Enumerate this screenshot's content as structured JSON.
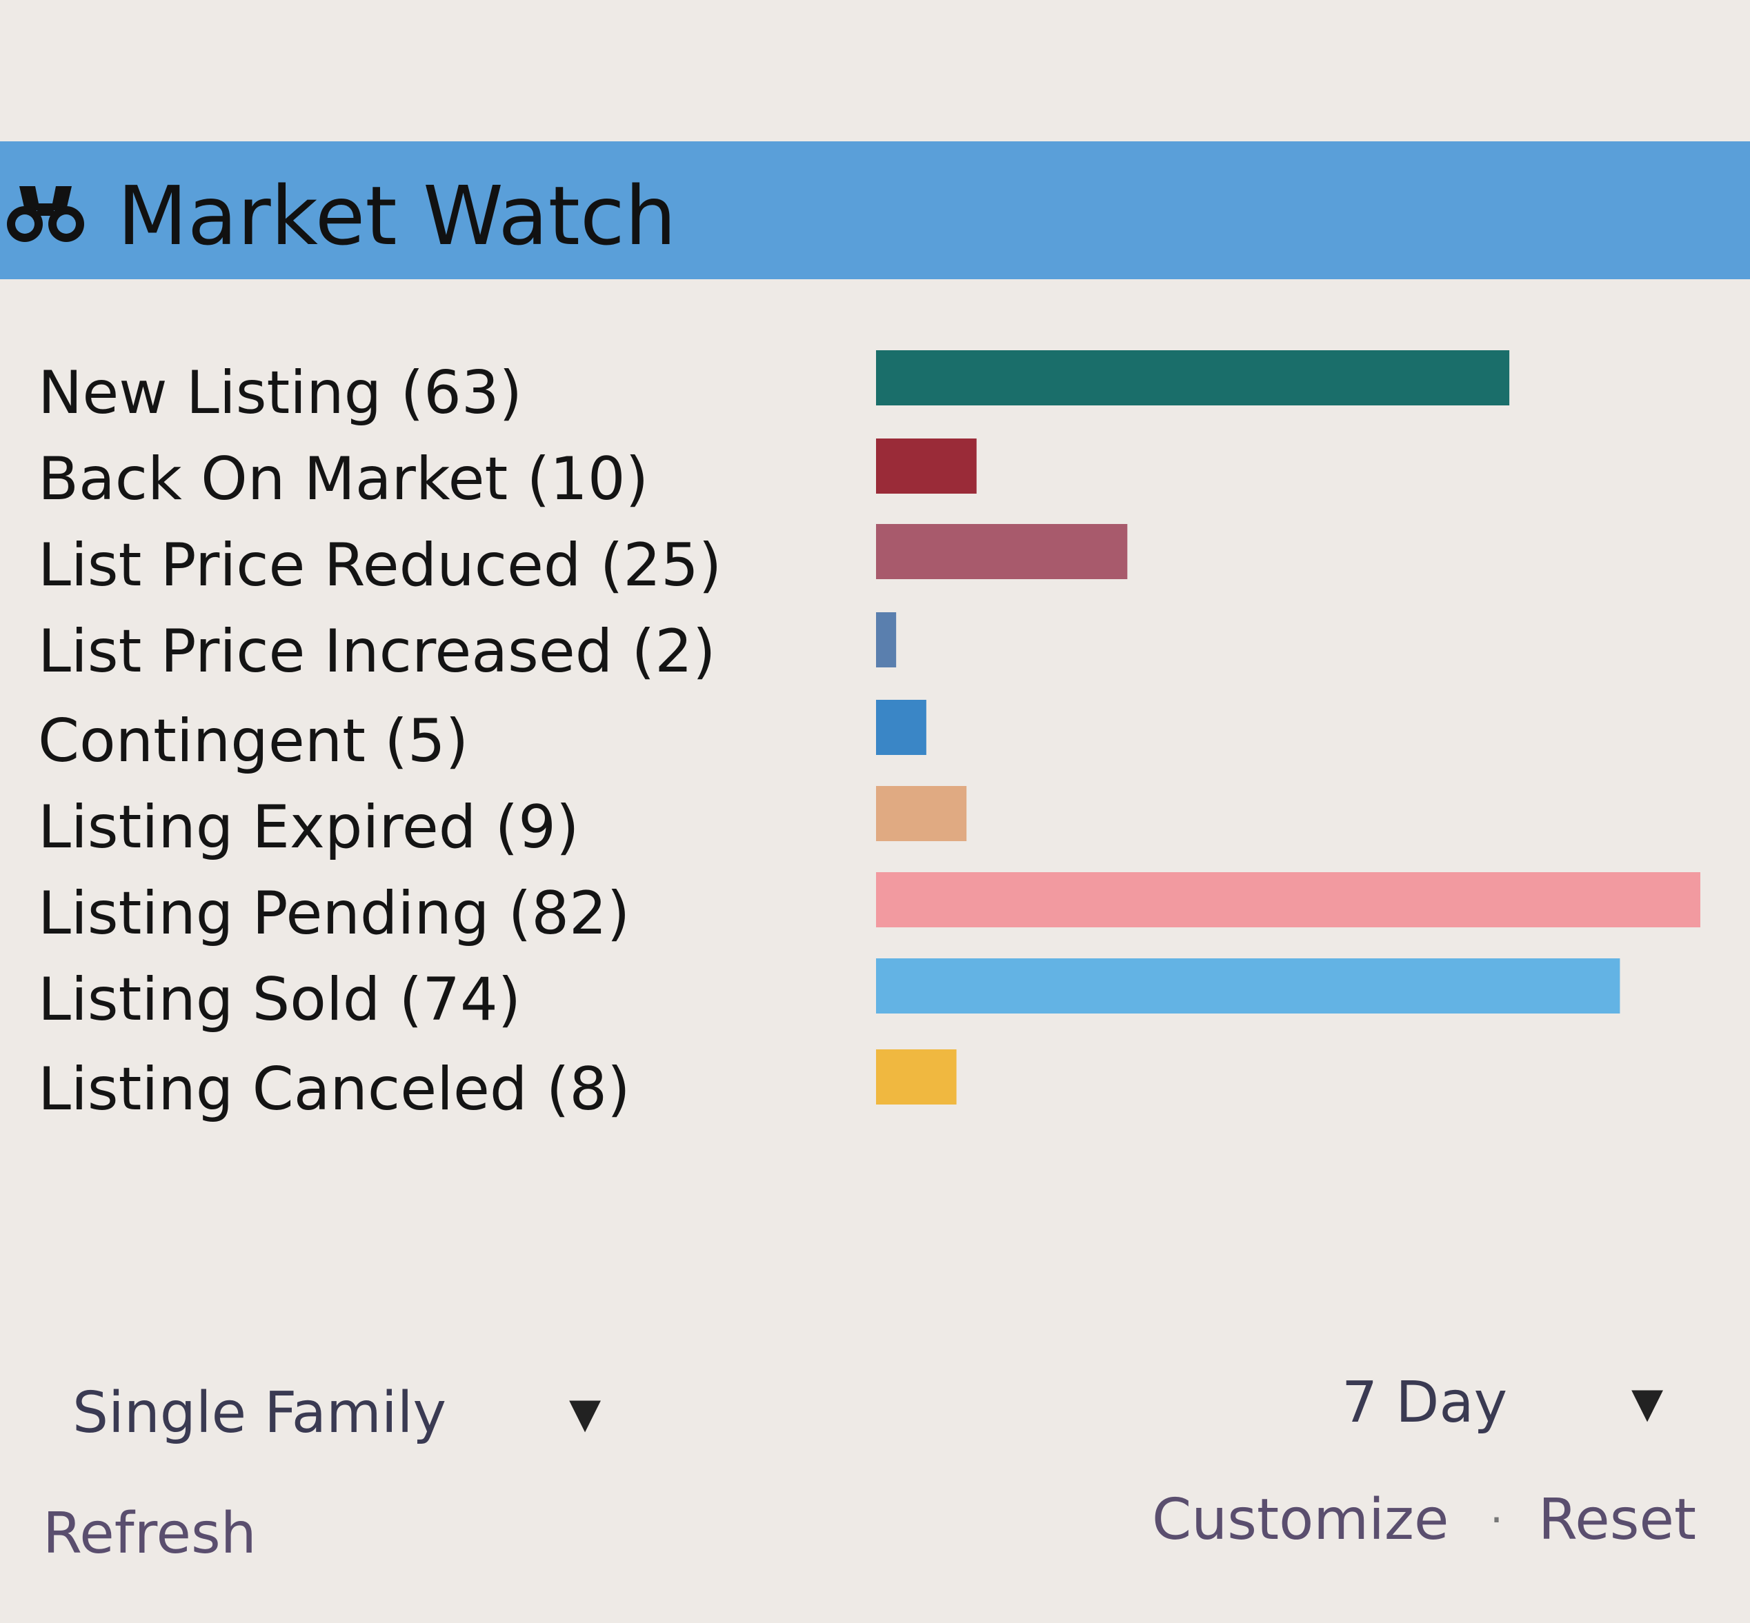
{
  "header": {
    "title": "Market Watch",
    "icon": "binoculars-icon",
    "background_color": "#5a9fd9"
  },
  "chart_data": {
    "type": "bar",
    "orientation": "horizontal",
    "categories": [
      "New Listing (63)",
      "Back On Market (10)",
      "List Price Reduced (25)",
      "List Price Increased (2)",
      "Contingent (5)",
      "Listing Expired (9)",
      "Listing Pending (82)",
      "Listing Sold (74)",
      "Listing Canceled (8)"
    ],
    "values": [
      63,
      10,
      25,
      2,
      5,
      9,
      82,
      74,
      8
    ],
    "colors": [
      "#1a6e6a",
      "#9a2b38",
      "#a85a6c",
      "#5a7fae",
      "#3a86c6",
      "#e0aa82",
      "#f29aa0",
      "#63b3e4",
      "#f0b840"
    ],
    "xlim": [
      0,
      82
    ],
    "grid": false
  },
  "filters": {
    "property_type": "Single Family",
    "period": "7 Day"
  },
  "actions": {
    "refresh": "Refresh",
    "customize": "Customize",
    "separator": "·",
    "reset": "Reset"
  }
}
